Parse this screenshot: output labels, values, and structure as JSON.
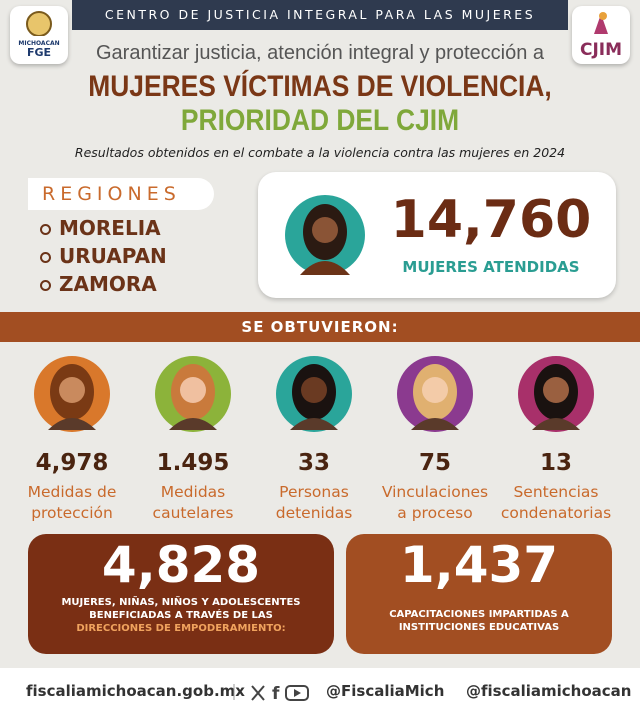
{
  "header": {
    "banner": "CENTRO DE JUSTICIA INTEGRAL PARA LAS MUJERES",
    "logo_left": [
      "MICHOACAN",
      "FGE"
    ],
    "logo_right": "CJIM"
  },
  "title": {
    "line1": "Garantizar justicia, atención integral y protección a",
    "line2": "MUJERES VÍCTIMAS DE VIOLENCIA,",
    "line3": "PRIORIDAD DEL CJIM",
    "subtitle": "Resultados obtenidos en el combate a la violencia contra las mujeres en 2024"
  },
  "regions": {
    "title": "REGIONES",
    "items": [
      "MORELIA",
      "URUAPAN",
      "ZAMORA"
    ]
  },
  "highlight": {
    "value": "14,760",
    "label": "MUJERES ATENDIDAS"
  },
  "section": "SE OBTUVIERON:",
  "stats": [
    {
      "value": "4,978",
      "label": [
        "Medidas de",
        "protección"
      ]
    },
    {
      "value": "1.495",
      "label": [
        "Medidas",
        "cautelares"
      ]
    },
    {
      "value": "33",
      "label": [
        "Personas",
        "detenidas"
      ]
    },
    {
      "value": "75",
      "label": [
        "Vinculaciones",
        "a proceso"
      ]
    },
    {
      "value": "13",
      "label": [
        "Sentencias",
        "condenatorias"
      ]
    }
  ],
  "boxes": [
    {
      "value": "4,828",
      "label": [
        "MUJERES, NIÑAS, NIÑOS Y ADOLESCENTES",
        "BENEFICIADAS A TRAVÉS DE LAS",
        "DIRECCIONES DE EMPODERAMIENTO:"
      ]
    },
    {
      "value": "1,437",
      "label": [
        "CAPACITACIONES IMPARTIDAS A",
        "INSTITUCIONES EDUCATIVAS"
      ]
    }
  ],
  "footer": {
    "website": "fiscaliamichoacan.gob.mx",
    "handle1": "@FiscaliaMich",
    "handle2": "@fiscaliamichoacan"
  }
}
